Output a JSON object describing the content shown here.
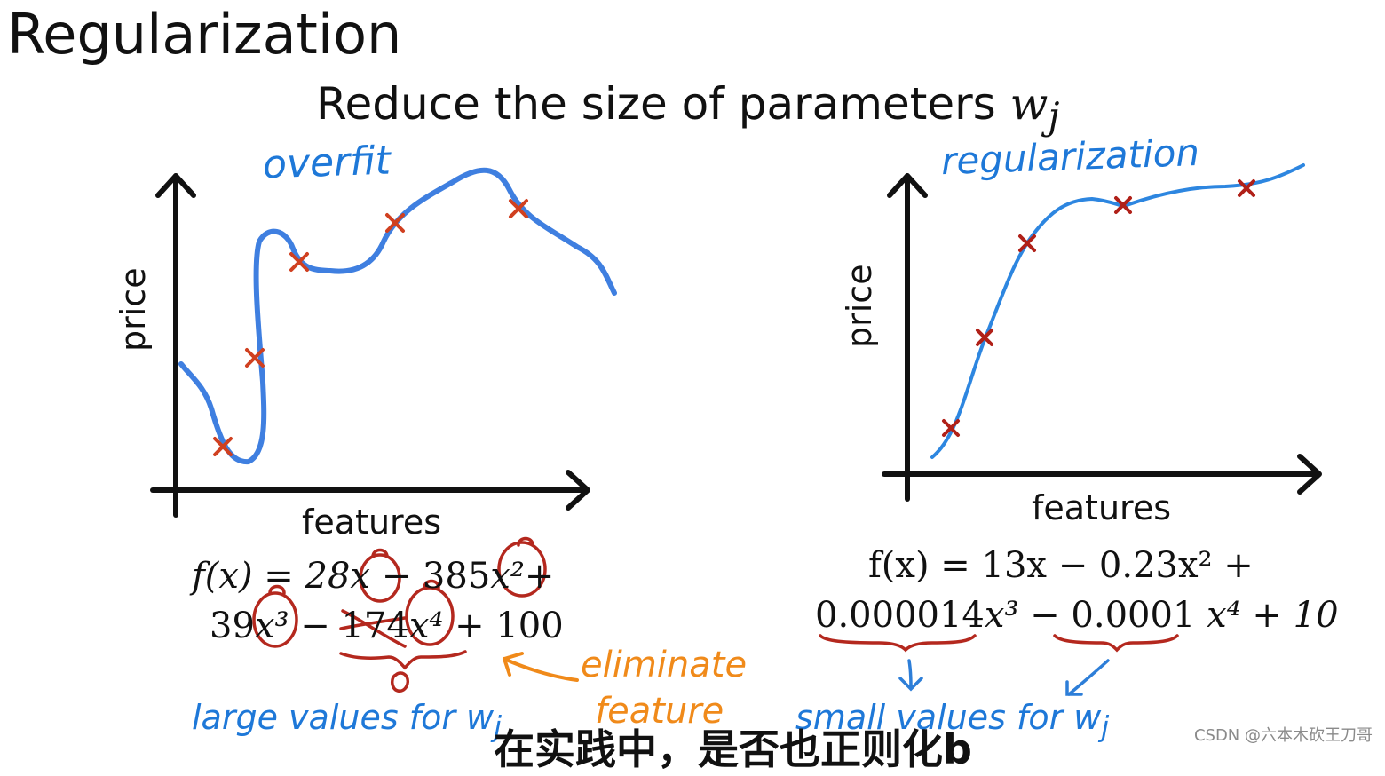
{
  "title": "Regularization",
  "subtitle": "Reduce the size of parameters",
  "subtitle_var": "w",
  "subtitle_sub": "j",
  "left_plot": {
    "annotation": "overfit",
    "xlabel": "features",
    "ylabel": "price",
    "eq_line1": {
      "pre": "f(x) = 28",
      "x1": "x",
      "mid": " − 385",
      "x2": "x²",
      "end": "+"
    },
    "eq_line2": {
      "pre": "39",
      "x3": "x³",
      "mid1": " − ",
      "strike": "174",
      "x4": "x⁴",
      "end": " + 100"
    },
    "zero": "0",
    "note_large": "large values for w",
    "note_large_sub": "j",
    "eliminate_1": "eliminate",
    "eliminate_2": "feature"
  },
  "right_plot": {
    "annotation": "regularization",
    "xlabel": "features",
    "ylabel": "price",
    "eq_line1": "f(x) = 13x − 0.23x² +",
    "eq_line2a": "0.000014",
    "eq_line2b": "x³ − ",
    "eq_line2c": "0.0001",
    "eq_line2d": " x⁴ + 10",
    "note_small": "small values for w",
    "note_small_sub": "j"
  },
  "subtitle_overlay": "在实践中，是否也正则化b",
  "watermark": "CSDN @六本木砍王刀哥",
  "colors": {
    "blue_curve": "#3f7fe0",
    "red_mark": "#c0281e",
    "orange": "#f08a1a",
    "blue_note": "#1e78d8"
  }
}
